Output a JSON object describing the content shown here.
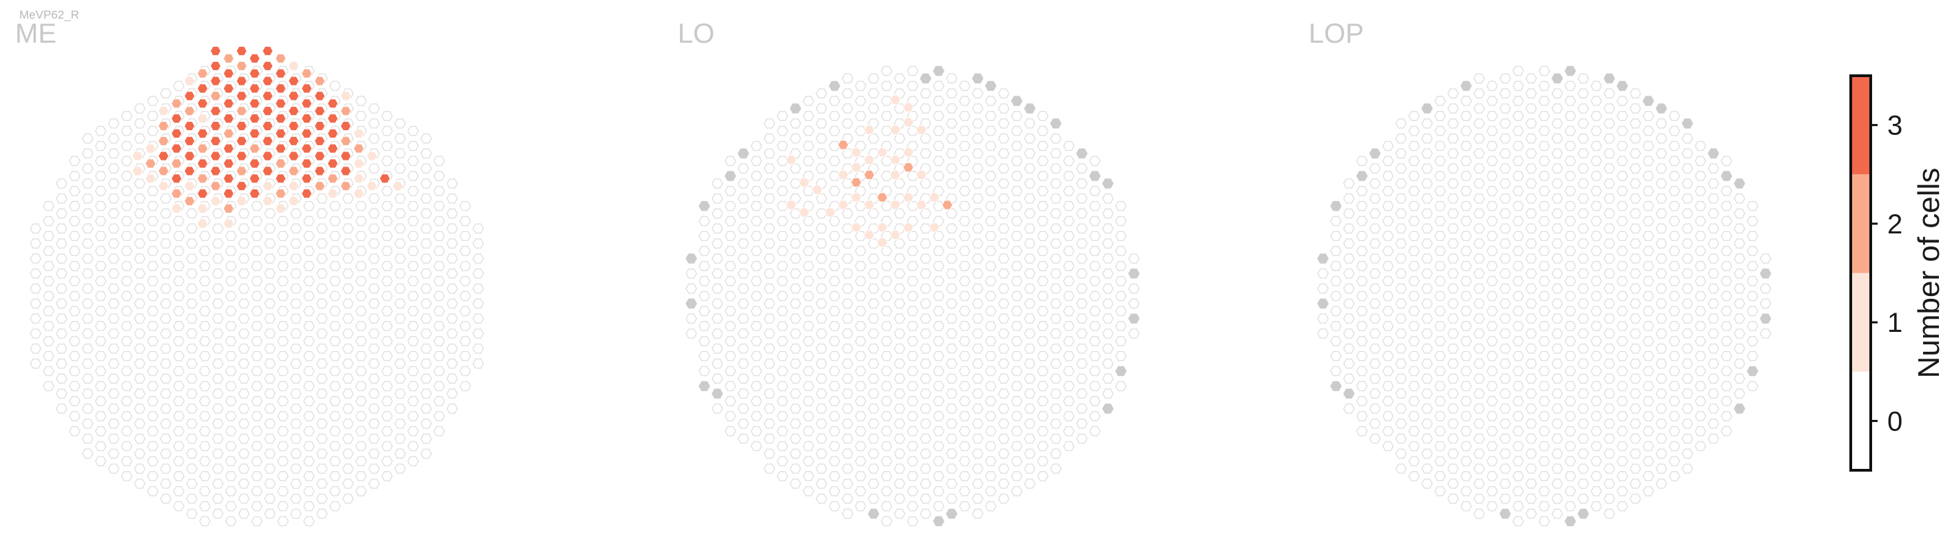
{
  "cell_name": "MeVP62_R",
  "colors": {
    "level0": "#ffffff",
    "level1": "#fde4d8",
    "level2": "#f9aa8c",
    "level3": "#f1684b",
    "grid": "#e0e0e0",
    "out_of_range": "#cbcbcb"
  },
  "chart_data": {
    "type": "heatmap",
    "description_of_values": "count of cells per hexagonal column",
    "panels": [
      {
        "region": "ME",
        "hex_cells": [
          {
            "x": 0,
            "y": 0,
            "value": 3
          },
          {
            "x": 1,
            "y": 0,
            "value": 2
          },
          {
            "x": 2,
            "y": 0,
            "value": 3
          },
          {
            "x": 3,
            "y": 0,
            "value": 3
          },
          {
            "x": 4,
            "y": 0,
            "value": 3
          },
          {
            "x": 5,
            "y": 0,
            "value": 2
          },
          {
            "x": -1,
            "y": 1,
            "value": 2
          },
          {
            "x": 0,
            "y": 1,
            "value": 3
          },
          {
            "x": 1,
            "y": 1,
            "value": 3
          },
          {
            "x": 2,
            "y": 1,
            "value": 2
          },
          {
            "x": 3,
            "y": 1,
            "value": 3
          },
          {
            "x": 4,
            "y": 1,
            "value": 3
          },
          {
            "x": 5,
            "y": 1,
            "value": 3
          },
          {
            "x": 6,
            "y": 1,
            "value": 1
          },
          {
            "x": 7,
            "y": 1,
            "value": 2
          },
          {
            "x": -2,
            "y": 2,
            "value": 1
          },
          {
            "x": -1,
            "y": 2,
            "value": 3
          },
          {
            "x": 0,
            "y": 2,
            "value": 3
          },
          {
            "x": 1,
            "y": 2,
            "value": 3
          },
          {
            "x": 2,
            "y": 2,
            "value": 3
          },
          {
            "x": 3,
            "y": 2,
            "value": 3
          },
          {
            "x": 4,
            "y": 2,
            "value": 3
          },
          {
            "x": 5,
            "y": 2,
            "value": 3
          },
          {
            "x": 6,
            "y": 2,
            "value": 3
          },
          {
            "x": 7,
            "y": 2,
            "value": 3
          },
          {
            "x": 8,
            "y": 2,
            "value": 2
          },
          {
            "x": -3,
            "y": 3,
            "value": 2
          },
          {
            "x": -2,
            "y": 3,
            "value": 3
          },
          {
            "x": -1,
            "y": 3,
            "value": 3
          },
          {
            "x": 0,
            "y": 3,
            "value": 2
          },
          {
            "x": 1,
            "y": 3,
            "value": 3
          },
          {
            "x": 2,
            "y": 3,
            "value": 3
          },
          {
            "x": 3,
            "y": 3,
            "value": 3
          },
          {
            "x": 4,
            "y": 3,
            "value": 3
          },
          {
            "x": 5,
            "y": 3,
            "value": 3
          },
          {
            "x": 6,
            "y": 3,
            "value": 3
          },
          {
            "x": 7,
            "y": 3,
            "value": 3
          },
          {
            "x": 8,
            "y": 3,
            "value": 3
          },
          {
            "x": 9,
            "y": 3,
            "value": 3
          },
          {
            "x": 10,
            "y": 3,
            "value": 1
          },
          {
            "x": -4,
            "y": 4,
            "value": 1
          },
          {
            "x": -3,
            "y": 4,
            "value": 3
          },
          {
            "x": -2,
            "y": 4,
            "value": 2
          },
          {
            "x": -1,
            "y": 4,
            "value": 1
          },
          {
            "x": 0,
            "y": 4,
            "value": 3
          },
          {
            "x": 1,
            "y": 4,
            "value": 3
          },
          {
            "x": 2,
            "y": 4,
            "value": 2
          },
          {
            "x": 3,
            "y": 4,
            "value": 3
          },
          {
            "x": 4,
            "y": 4,
            "value": 3
          },
          {
            "x": 5,
            "y": 4,
            "value": 3
          },
          {
            "x": 6,
            "y": 4,
            "value": 3
          },
          {
            "x": 7,
            "y": 4,
            "value": 3
          },
          {
            "x": 8,
            "y": 4,
            "value": 3
          },
          {
            "x": 9,
            "y": 4,
            "value": 3
          },
          {
            "x": 10,
            "y": 4,
            "value": 2
          },
          {
            "x": -4,
            "y": 5,
            "value": 2
          },
          {
            "x": -3,
            "y": 5,
            "value": 3
          },
          {
            "x": -2,
            "y": 5,
            "value": 3
          },
          {
            "x": -1,
            "y": 5,
            "value": 3
          },
          {
            "x": 0,
            "y": 5,
            "value": 3
          },
          {
            "x": 1,
            "y": 5,
            "value": 2
          },
          {
            "x": 2,
            "y": 5,
            "value": 3
          },
          {
            "x": 3,
            "y": 5,
            "value": 3
          },
          {
            "x": 4,
            "y": 5,
            "value": 3
          },
          {
            "x": 5,
            "y": 5,
            "value": 3
          },
          {
            "x": 6,
            "y": 5,
            "value": 3
          },
          {
            "x": 7,
            "y": 5,
            "value": 3
          },
          {
            "x": 8,
            "y": 5,
            "value": 3
          },
          {
            "x": 9,
            "y": 5,
            "value": 3
          },
          {
            "x": 10,
            "y": 5,
            "value": 3
          },
          {
            "x": 11,
            "y": 5,
            "value": 1
          },
          {
            "x": -5,
            "y": 6,
            "value": 1
          },
          {
            "x": -4,
            "y": 6,
            "value": 2
          },
          {
            "x": -3,
            "y": 6,
            "value": 3
          },
          {
            "x": -2,
            "y": 6,
            "value": 3
          },
          {
            "x": -1,
            "y": 6,
            "value": 2
          },
          {
            "x": 0,
            "y": 6,
            "value": 3
          },
          {
            "x": 1,
            "y": 6,
            "value": 3
          },
          {
            "x": 2,
            "y": 6,
            "value": 3
          },
          {
            "x": 3,
            "y": 6,
            "value": 2
          },
          {
            "x": 4,
            "y": 6,
            "value": 3
          },
          {
            "x": 5,
            "y": 6,
            "value": 3
          },
          {
            "x": 6,
            "y": 6,
            "value": 3
          },
          {
            "x": 7,
            "y": 6,
            "value": 3
          },
          {
            "x": 8,
            "y": 6,
            "value": 3
          },
          {
            "x": 9,
            "y": 6,
            "value": 3
          },
          {
            "x": 10,
            "y": 6,
            "value": 2
          },
          {
            "x": 11,
            "y": 6,
            "value": 2
          },
          {
            "x": -6,
            "y": 7,
            "value": 1
          },
          {
            "x": -5,
            "y": 7,
            "value": 2
          },
          {
            "x": -4,
            "y": 7,
            "value": 3
          },
          {
            "x": -3,
            "y": 7,
            "value": 2
          },
          {
            "x": -2,
            "y": 7,
            "value": 3
          },
          {
            "x": -1,
            "y": 7,
            "value": 3
          },
          {
            "x": 0,
            "y": 7,
            "value": 3
          },
          {
            "x": 1,
            "y": 7,
            "value": 3
          },
          {
            "x": 2,
            "y": 7,
            "value": 3
          },
          {
            "x": 3,
            "y": 7,
            "value": 3
          },
          {
            "x": 4,
            "y": 7,
            "value": 3
          },
          {
            "x": 5,
            "y": 7,
            "value": 2
          },
          {
            "x": 6,
            "y": 7,
            "value": 3
          },
          {
            "x": 7,
            "y": 7,
            "value": 3
          },
          {
            "x": 8,
            "y": 7,
            "value": 3
          },
          {
            "x": 9,
            "y": 7,
            "value": 3
          },
          {
            "x": 10,
            "y": 7,
            "value": 3
          },
          {
            "x": 11,
            "y": 7,
            "value": 1
          },
          {
            "x": 12,
            "y": 7,
            "value": 1
          },
          {
            "x": -6,
            "y": 8,
            "value": 1
          },
          {
            "x": -5,
            "y": 8,
            "value": 1
          },
          {
            "x": -4,
            "y": 8,
            "value": 2
          },
          {
            "x": -3,
            "y": 8,
            "value": 3
          },
          {
            "x": -2,
            "y": 8,
            "value": 3
          },
          {
            "x": -1,
            "y": 8,
            "value": 2
          },
          {
            "x": 0,
            "y": 8,
            "value": 3
          },
          {
            "x": 1,
            "y": 8,
            "value": 3
          },
          {
            "x": 2,
            "y": 8,
            "value": 2
          },
          {
            "x": 3,
            "y": 8,
            "value": 3
          },
          {
            "x": 4,
            "y": 8,
            "value": 3
          },
          {
            "x": 5,
            "y": 8,
            "value": 3
          },
          {
            "x": 6,
            "y": 8,
            "value": 2
          },
          {
            "x": 7,
            "y": 8,
            "value": 3
          },
          {
            "x": 8,
            "y": 8,
            "value": 3
          },
          {
            "x": 9,
            "y": 8,
            "value": 2
          },
          {
            "x": 10,
            "y": 8,
            "value": 3
          },
          {
            "x": 11,
            "y": 8,
            "value": 1
          },
          {
            "x": 13,
            "y": 8,
            "value": 3
          },
          {
            "x": -4,
            "y": 9,
            "value": 1
          },
          {
            "x": -3,
            "y": 9,
            "value": 2
          },
          {
            "x": -2,
            "y": 9,
            "value": 1
          },
          {
            "x": -1,
            "y": 9,
            "value": 3
          },
          {
            "x": 0,
            "y": 9,
            "value": 2
          },
          {
            "x": 1,
            "y": 9,
            "value": 3
          },
          {
            "x": 2,
            "y": 9,
            "value": 3
          },
          {
            "x": 3,
            "y": 9,
            "value": 3
          },
          {
            "x": 4,
            "y": 9,
            "value": 1
          },
          {
            "x": 5,
            "y": 9,
            "value": 2
          },
          {
            "x": 6,
            "y": 9,
            "value": 1
          },
          {
            "x": 7,
            "y": 9,
            "value": 3
          },
          {
            "x": 8,
            "y": 9,
            "value": 2
          },
          {
            "x": 9,
            "y": 9,
            "value": 1
          },
          {
            "x": 10,
            "y": 9,
            "value": 2
          },
          {
            "x": 11,
            "y": 9,
            "value": 1
          },
          {
            "x": 12,
            "y": 9,
            "value": 1
          },
          {
            "x": 14,
            "y": 9,
            "value": 1
          },
          {
            "x": -3,
            "y": 10,
            "value": 1
          },
          {
            "x": -2,
            "y": 10,
            "value": 2
          },
          {
            "x": -1,
            "y": 10,
            "value": 1
          },
          {
            "x": 0,
            "y": 10,
            "value": 1
          },
          {
            "x": 1,
            "y": 10,
            "value": 2
          },
          {
            "x": 2,
            "y": 10,
            "value": 1
          },
          {
            "x": 4,
            "y": 10,
            "value": 1
          },
          {
            "x": 5,
            "y": 10,
            "value": 1
          },
          {
            "x": 6,
            "y": 10,
            "value": 1
          },
          {
            "x": -1,
            "y": 11,
            "value": 1
          },
          {
            "x": 1,
            "y": 11,
            "value": 1
          }
        ]
      },
      {
        "region": "LO",
        "hex_cells": [
          {
            "x": 2,
            "y": 0,
            "value": 1
          },
          {
            "x": 3,
            "y": 0,
            "value": 1
          },
          {
            "x": 3,
            "y": 1,
            "value": 1
          },
          {
            "x": 0,
            "y": 2,
            "value": 1
          },
          {
            "x": 2,
            "y": 2,
            "value": 1
          },
          {
            "x": 4,
            "y": 2,
            "value": 1
          },
          {
            "x": -2,
            "y": 3,
            "value": 2
          },
          {
            "x": -1,
            "y": 3,
            "value": 1
          },
          {
            "x": 1,
            "y": 3,
            "value": 1
          },
          {
            "x": 3,
            "y": 3,
            "value": 1
          },
          {
            "x": -6,
            "y": 4,
            "value": 1
          },
          {
            "x": -1,
            "y": 4,
            "value": 1
          },
          {
            "x": 0,
            "y": 4,
            "value": 1
          },
          {
            "x": 2,
            "y": 4,
            "value": 1
          },
          {
            "x": 3,
            "y": 4,
            "value": 2
          },
          {
            "x": -5,
            "y": 5,
            "value": 1
          },
          {
            "x": -2,
            "y": 5,
            "value": 1
          },
          {
            "x": -1,
            "y": 5,
            "value": 2
          },
          {
            "x": 0,
            "y": 5,
            "value": 2
          },
          {
            "x": 2,
            "y": 5,
            "value": 1
          },
          {
            "x": 4,
            "y": 5,
            "value": 1
          },
          {
            "x": -4,
            "y": 6,
            "value": 1
          },
          {
            "x": -1,
            "y": 6,
            "value": 1
          },
          {
            "x": 1,
            "y": 6,
            "value": 2
          },
          {
            "x": 3,
            "y": 6,
            "value": 1
          },
          {
            "x": 5,
            "y": 6,
            "value": 1
          },
          {
            "x": -6,
            "y": 7,
            "value": 1
          },
          {
            "x": -5,
            "y": 7,
            "value": 1
          },
          {
            "x": -3,
            "y": 7,
            "value": 1
          },
          {
            "x": -2,
            "y": 7,
            "value": 1
          },
          {
            "x": 0,
            "y": 7,
            "value": 1
          },
          {
            "x": 2,
            "y": 7,
            "value": 1
          },
          {
            "x": 4,
            "y": 7,
            "value": 1
          },
          {
            "x": 6,
            "y": 7,
            "value": 2
          },
          {
            "x": -1,
            "y": 8,
            "value": 1
          },
          {
            "x": 1,
            "y": 8,
            "value": 1
          },
          {
            "x": 3,
            "y": 8,
            "value": 1
          },
          {
            "x": 5,
            "y": 8,
            "value": 1
          },
          {
            "x": 0,
            "y": 9,
            "value": 1
          },
          {
            "x": 1,
            "y": 9,
            "value": 1
          },
          {
            "x": 2,
            "y": 9,
            "value": 1
          }
        ]
      },
      {
        "region": "LOP",
        "hex_cells": []
      }
    ],
    "colorbar": {
      "label": "Number of cells",
      "ticks": [
        "0",
        "1",
        "2",
        "3"
      ],
      "min": -0.5,
      "max": 3.5,
      "bins": [
        0,
        1,
        2,
        3
      ]
    }
  }
}
